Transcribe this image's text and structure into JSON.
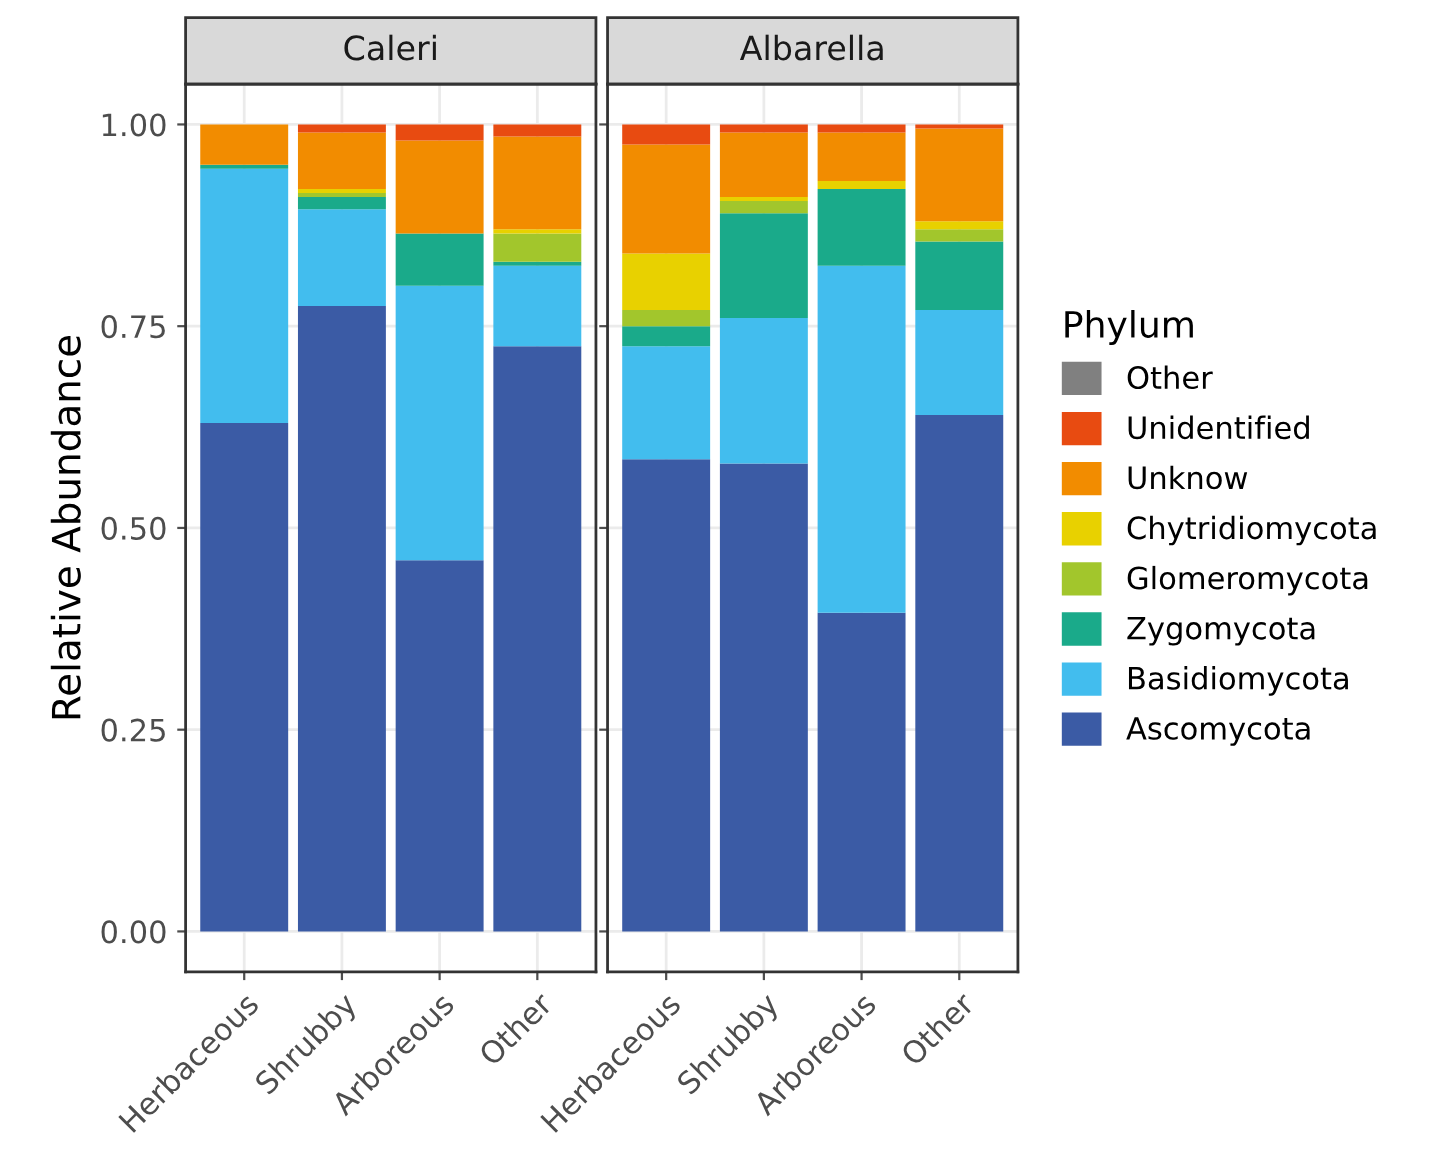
{
  "chart_data": [
    {
      "type": "bar",
      "stacked": true,
      "title": "Caleri",
      "ylabel": "Relative Abundance",
      "categories": [
        "Herbaceous",
        "Shrubby",
        "Arboreous",
        "Other"
      ],
      "ylim": [
        -0.05,
        1.05
      ],
      "yticks": [
        {
          "value": 0,
          "label": "0.00"
        },
        {
          "value": 0.25,
          "label": "0.25"
        },
        {
          "value": 0.5,
          "label": "0.50"
        },
        {
          "value": 0.75,
          "label": "0.75"
        },
        {
          "value": 1,
          "label": "1.00"
        }
      ],
      "grid": true,
      "series": [
        {
          "color": "#3b5ba5",
          "values": [
            0.63,
            0.775,
            0.46,
            0.725
          ]
        },
        {
          "color": "#42bdee",
          "values": [
            0.315,
            0.12,
            0.34,
            0.1
          ]
        },
        {
          "color": "#1aaa8a",
          "values": [
            0.005,
            0.015,
            0.065,
            0.005
          ]
        },
        {
          "color": "#a2c62c",
          "values": [
            0,
            0.005,
            0,
            0.035
          ]
        },
        {
          "color": "#e8d100",
          "values": [
            0,
            0.005,
            0,
            0.005
          ]
        },
        {
          "color": "#f28c00",
          "values": [
            0.05,
            0.07,
            0.115,
            0.115
          ]
        },
        {
          "color": "#e84b11",
          "values": [
            0,
            0.01,
            0.02,
            0.015
          ]
        },
        {
          "color": "#808080",
          "values": [
            0,
            0,
            0,
            0
          ]
        }
      ]
    },
    {
      "type": "bar",
      "stacked": true,
      "title": "Albarella",
      "categories": [
        "Herbaceous",
        "Shrubby",
        "Arboreous",
        "Other"
      ],
      "ylim": [
        -0.05,
        1.05
      ],
      "yticks": [
        {
          "value": 0,
          "label": null
        },
        {
          "value": 0.25,
          "label": null
        },
        {
          "value": 0.5,
          "label": null
        },
        {
          "value": 0.75,
          "label": null
        },
        {
          "value": 1,
          "label": null
        }
      ],
      "tick_labels": "x",
      "grid": true,
      "legend": "right",
      "legend_title": "Phylum",
      "series": [
        {
          "name": "Ascomycota",
          "color": "#3b5ba5",
          "values": [
            0.585,
            0.58,
            0.395,
            0.64
          ]
        },
        {
          "name": "Basidiomycota",
          "color": "#42bdee",
          "values": [
            0.14,
            0.18,
            0.43,
            0.13
          ]
        },
        {
          "name": "Zygomycota",
          "color": "#1aaa8a",
          "values": [
            0.025,
            0.13,
            0.095,
            0.085
          ]
        },
        {
          "name": "Glomeromycota",
          "color": "#a2c62c",
          "values": [
            0.02,
            0.015,
            0,
            0.015
          ]
        },
        {
          "name": "Chytridiomycota",
          "color": "#e8d100",
          "values": [
            0.07,
            0.005,
            0.01,
            0.01
          ]
        },
        {
          "name": "Unknow",
          "color": "#f28c00",
          "values": [
            0.135,
            0.08,
            0.06,
            0.115
          ]
        },
        {
          "name": "Unidentified",
          "color": "#e84b11",
          "values": [
            0.025,
            0.01,
            0.01,
            0.005
          ]
        },
        {
          "name": "Other",
          "color": "#808080",
          "values": [
            0,
            0,
            0,
            0
          ]
        }
      ]
    }
  ]
}
